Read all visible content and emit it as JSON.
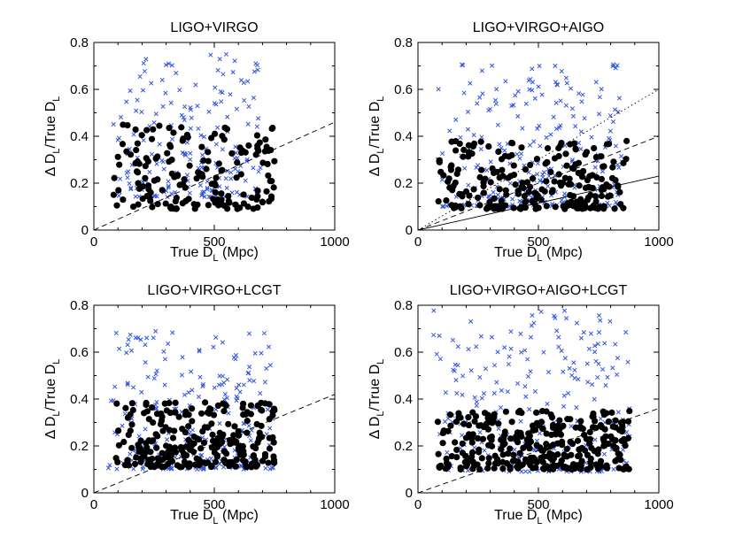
{
  "chart_data": [
    {
      "type": "scatter",
      "title": "LIGO+VIRGO",
      "xlabel": {
        "prefix": "True D",
        "sub": "L",
        "suffix": " (Mpc)"
      },
      "ylabel": {
        "delta": "Δ",
        "d1": " D",
        "sub1": "L",
        "mid": "/True D",
        "sub2": "L"
      },
      "xlim": [
        0,
        1000
      ],
      "ylim": [
        0,
        0.8
      ],
      "xticks": [
        "0",
        "500",
        "1000"
      ],
      "yticks": [
        "0",
        "0.2",
        "0.4",
        "0.6",
        "0.8"
      ],
      "series": [
        {
          "marker": "x",
          "color": "#3355dd",
          "n": 190,
          "xrange": [
            80,
            700
          ],
          "yrange": [
            0.14,
            0.75
          ]
        },
        {
          "marker": "dot",
          "color": "#000000",
          "n": 170,
          "xrange": [
            80,
            750
          ],
          "yrange": [
            0.09,
            0.45
          ]
        }
      ],
      "lines": [
        {
          "style": "dashed",
          "from": [
            0,
            0
          ],
          "to": [
            1000,
            0.46
          ]
        }
      ]
    },
    {
      "type": "scatter",
      "title": "LIGO+VIRGO+AIGO",
      "xlabel": {
        "prefix": "True D",
        "sub": "L",
        "suffix": " (Mpc)"
      },
      "ylabel": {
        "delta": "Δ",
        "d1": " D",
        "sub1": "L",
        "mid": "/True D",
        "sub2": "L"
      },
      "xlim": [
        0,
        1000
      ],
      "ylim": [
        0,
        0.8
      ],
      "xticks": [
        "0",
        "500",
        "1000"
      ],
      "yticks": [
        "0",
        "0.2",
        "0.4",
        "0.6",
        "0.8"
      ],
      "series": [
        {
          "marker": "x",
          "color": "#3355dd",
          "n": 260,
          "xrange": [
            80,
            850
          ],
          "yrange": [
            0.1,
            0.71
          ]
        },
        {
          "marker": "dot",
          "color": "#000000",
          "n": 240,
          "xrange": [
            80,
            870
          ],
          "yrange": [
            0.09,
            0.38
          ]
        }
      ],
      "lines": [
        {
          "style": "dotted",
          "from": [
            0,
            0
          ],
          "to": [
            1000,
            0.6
          ]
        },
        {
          "style": "dashed",
          "from": [
            0,
            0
          ],
          "to": [
            1000,
            0.4
          ]
        },
        {
          "style": "solid",
          "from": [
            0,
            0
          ],
          "to": [
            1000,
            0.23
          ]
        }
      ]
    },
    {
      "type": "scatter",
      "title": "LIGO+VIRGO+LCGT",
      "xlabel": {
        "prefix": "True D",
        "sub": "L",
        "suffix": " (Mpc)"
      },
      "ylabel": {
        "delta": "Δ",
        "d1": " D",
        "sub1": "L",
        "mid": "/True D",
        "sub2": "L"
      },
      "xlim": [
        0,
        1000
      ],
      "ylim": [
        0,
        0.8
      ],
      "xticks": [
        "0",
        "500",
        "1000"
      ],
      "yticks": [
        "0",
        "0.2",
        "0.4",
        "0.6",
        "0.8"
      ],
      "series": [
        {
          "marker": "x",
          "color": "#3355dd",
          "n": 230,
          "xrange": [
            60,
            750
          ],
          "yrange": [
            0.1,
            0.69
          ]
        },
        {
          "marker": "dot",
          "color": "#000000",
          "n": 260,
          "xrange": [
            90,
            750
          ],
          "yrange": [
            0.11,
            0.39
          ]
        }
      ],
      "lines": [
        {
          "style": "dashed",
          "from": [
            0,
            0
          ],
          "to": [
            1000,
            0.42
          ]
        }
      ]
    },
    {
      "type": "scatter",
      "title": "LIGO+VIRGO+AIGO+LCGT",
      "xlabel": {
        "prefix": "True D",
        "sub": "L",
        "suffix": " (Mpc)"
      },
      "ylabel": {
        "delta": "Δ",
        "d1": " D",
        "sub1": "L",
        "mid": "/True D",
        "sub2": "L"
      },
      "xlim": [
        0,
        1000
      ],
      "ylim": [
        0,
        0.8
      ],
      "xticks": [
        "0",
        "500",
        "1000"
      ],
      "yticks": [
        "0",
        "0.2",
        "0.4",
        "0.6",
        "0.8"
      ],
      "series": [
        {
          "marker": "x",
          "color": "#3355dd",
          "n": 280,
          "xrange": [
            60,
            880
          ],
          "yrange": [
            0.09,
            0.78
          ]
        },
        {
          "marker": "dot",
          "color": "#000000",
          "n": 320,
          "xrange": [
            80,
            880
          ],
          "yrange": [
            0.1,
            0.35
          ]
        }
      ],
      "lines": [
        {
          "style": "dashed",
          "from": [
            0,
            0
          ],
          "to": [
            1000,
            0.36
          ]
        }
      ]
    }
  ]
}
